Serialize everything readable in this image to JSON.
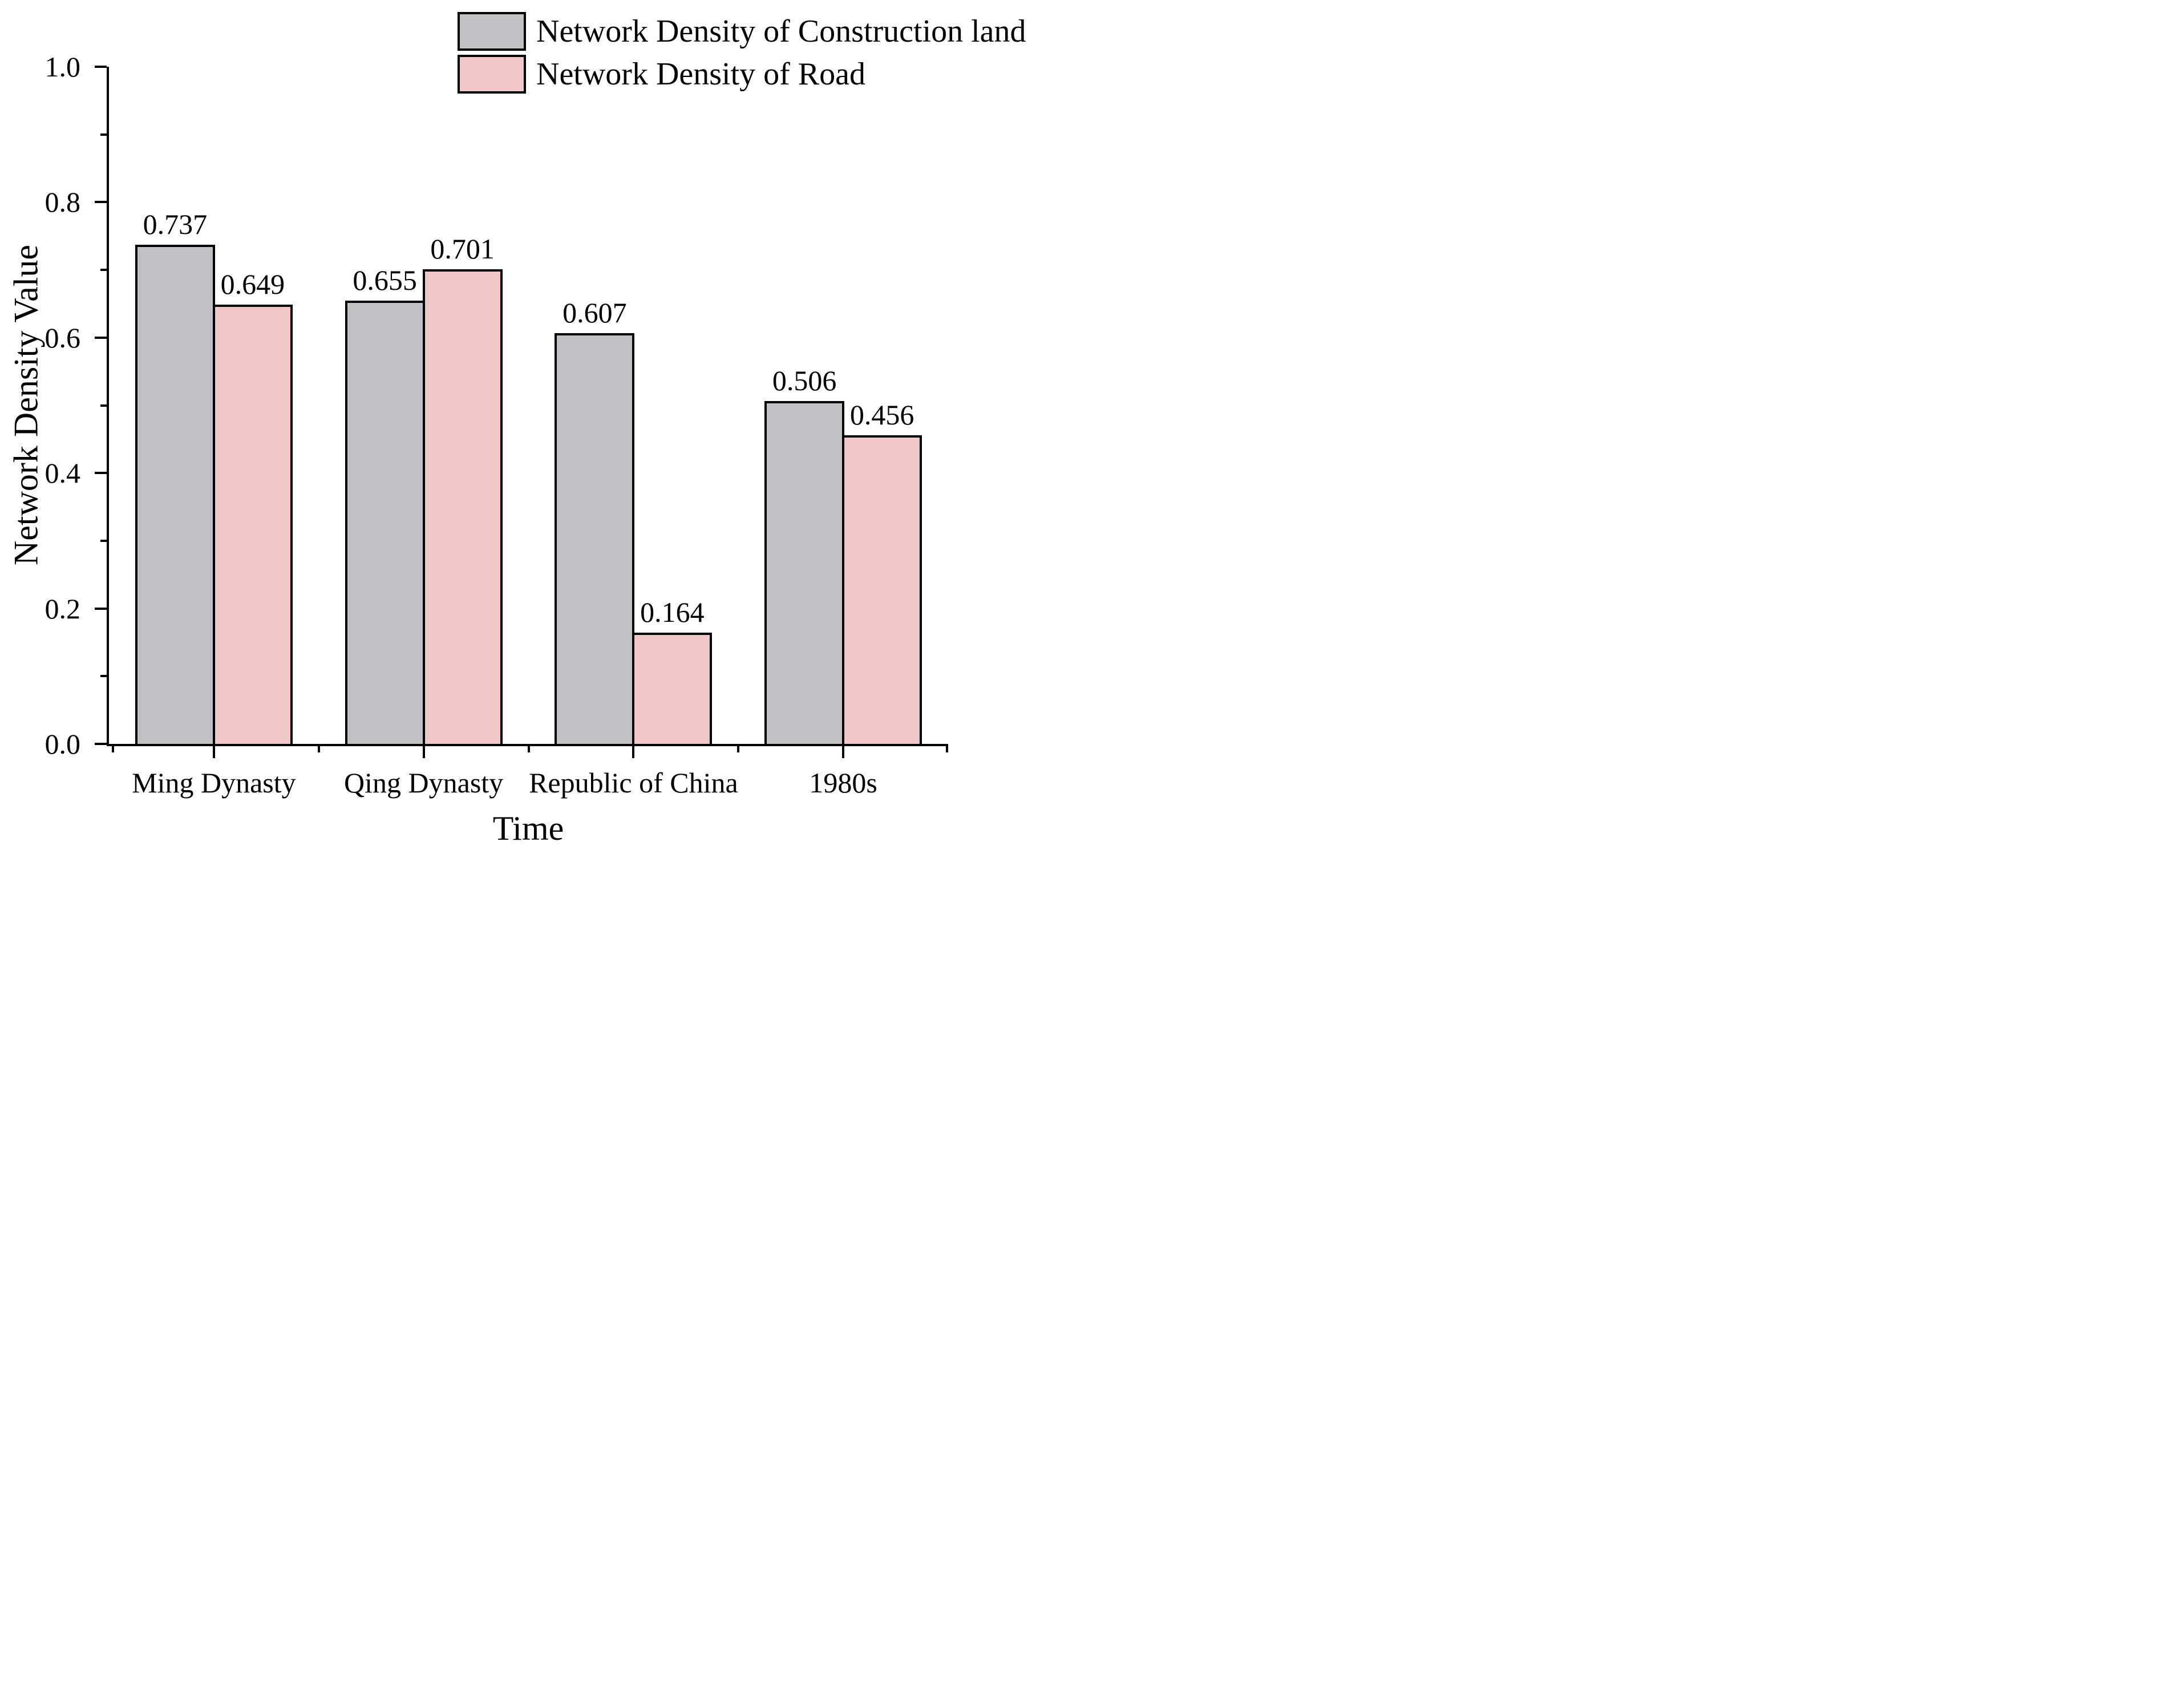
{
  "figure": {
    "background": "#ffffff",
    "axis_color": "#000000",
    "text_color": "#000000"
  },
  "chart_data": {
    "type": "bar",
    "title": "",
    "xlabel": "Time",
    "ylabel": "Network Density Value",
    "categories": [
      "Ming Dynasty",
      "Qing Dynasty",
      "Republic of China",
      "1980s"
    ],
    "series": [
      {
        "name": "Network Density of Construction land",
        "color": "#c1c1c3",
        "values": [
          0.737,
          0.655,
          0.607,
          0.506
        ],
        "value_labels": [
          "0.737",
          "0.655",
          "0.607",
          "0.506"
        ]
      },
      {
        "name": "Network Density of Road",
        "color": "#f0c6c8",
        "values": [
          0.649,
          0.701,
          0.164,
          0.456
        ],
        "value_labels": [
          "0.649",
          "0.701",
          "0.164",
          "0.456"
        ]
      }
    ],
    "ylim": [
      0.0,
      1.0
    ],
    "y_major_step": 0.2,
    "y_minor_step": 0.1,
    "y_major_tick_labels": [
      "0.0",
      "0.2",
      "0.4",
      "0.6",
      "0.8",
      "1.0"
    ],
    "bar_edge_color": "#000000",
    "grid": false,
    "legend_position": "top-right"
  }
}
